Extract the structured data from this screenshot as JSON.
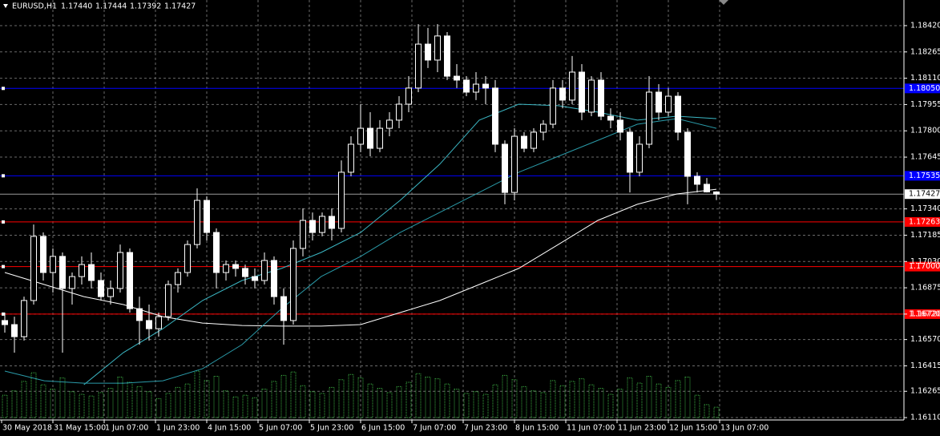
{
  "header": {
    "symbol": "EURUSD,H1"
  },
  "chart_data": {
    "type": "candlestick",
    "header_values": [
      "1.17440",
      "1.17444",
      "1.17392",
      "1.17427"
    ],
    "x_labels": [
      "30 May 2018",
      "31 May 15:00",
      "1 Jun 07:00",
      "1 Jun 23:00",
      "4 Jun 15:00",
      "5 Jun 07:00",
      "5 Jun 23:00",
      "6 Jun 15:00",
      "7 Jun 07:00",
      "7 Jun 23:00",
      "8 Jun 15:00",
      "11 Jun 07:00",
      "11 Jun 23:00",
      "12 Jun 15:00",
      "13 Jun 07:00"
    ],
    "ylim": [
      1.16096,
      1.18571
    ],
    "yticks": [
      {
        "value": 1.1842,
        "label": "1.18420"
      },
      {
        "value": 1.18265,
        "label": "1.18265"
      },
      {
        "value": 1.1811,
        "label": "1.18110"
      },
      {
        "value": 1.17955,
        "label": "1.17955"
      },
      {
        "value": 1.178,
        "label": "1.17800"
      },
      {
        "value": 1.17645,
        "label": "1.17645"
      },
      {
        "value": 1.1734,
        "label": "1.17340"
      },
      {
        "value": 1.17185,
        "label": "1.17185"
      },
      {
        "value": 1.1703,
        "label": "1.17030"
      },
      {
        "value": 1.16875,
        "label": "1.16875"
      },
      {
        "value": 1.1672,
        "label": "1.16720"
      },
      {
        "value": 1.1657,
        "label": "1.16570"
      },
      {
        "value": 1.16415,
        "label": "1.16415"
      },
      {
        "value": 1.16265,
        "label": "1.16265"
      },
      {
        "value": 1.1611,
        "label": "1.16110"
      }
    ],
    "grid": true,
    "candle_color": "#ffffff",
    "volume_color": "#3cb043",
    "candles": [
      [
        1.16682,
        1.16729,
        1.16611,
        1.16658
      ],
      [
        1.16658,
        1.16705,
        1.16493,
        1.16587
      ],
      [
        1.16587,
        1.16823,
        1.16564,
        1.168
      ],
      [
        1.168,
        1.17248,
        1.16776,
        1.17178
      ],
      [
        1.17178,
        1.17201,
        1.16918,
        1.16965
      ],
      [
        1.16965,
        1.17107,
        1.16847,
        1.1706
      ],
      [
        1.1706,
        1.17083,
        1.16493,
        1.16871
      ],
      [
        1.16871,
        1.16965,
        1.16776,
        1.16941
      ],
      [
        1.16941,
        1.1706,
        1.16894,
        1.17012
      ],
      [
        1.17012,
        1.17083,
        1.16871,
        1.16918
      ],
      [
        1.16918,
        1.16965,
        1.168,
        1.16823
      ],
      [
        1.16823,
        1.16918,
        1.16776,
        1.16871
      ],
      [
        1.16871,
        1.1713,
        1.16847,
        1.17083
      ],
      [
        1.17083,
        1.17107,
        1.16729,
        1.16752
      ],
      [
        1.16752,
        1.16823,
        1.1654,
        1.16682
      ],
      [
        1.16682,
        1.16776,
        1.16564,
        1.16634
      ],
      [
        1.16634,
        1.16729,
        1.16587,
        1.16705
      ],
      [
        1.16705,
        1.16918,
        1.16682,
        1.16894
      ],
      [
        1.16894,
        1.16989,
        1.16847,
        1.16965
      ],
      [
        1.16965,
        1.17154,
        1.16941,
        1.1713
      ],
      [
        1.1713,
        1.17461,
        1.17107,
        1.1739
      ],
      [
        1.1739,
        1.17414,
        1.17154,
        1.17201
      ],
      [
        1.17201,
        1.17225,
        1.16871,
        1.16965
      ],
      [
        1.16965,
        1.17036,
        1.16918,
        1.17012
      ],
      [
        1.17012,
        1.17036,
        1.16941,
        1.16989
      ],
      [
        1.16989,
        1.17012,
        1.16894,
        1.16941
      ],
      [
        1.16941,
        1.16989,
        1.16871,
        1.16918
      ],
      [
        1.16918,
        1.17083,
        1.16894,
        1.17036
      ],
      [
        1.17036,
        1.1706,
        1.16776,
        1.16823
      ],
      [
        1.16823,
        1.16871,
        1.1654,
        1.16682
      ],
      [
        1.16682,
        1.17154,
        1.16658,
        1.17107
      ],
      [
        1.17107,
        1.17343,
        1.1706,
        1.17272
      ],
      [
        1.17272,
        1.17319,
        1.17154,
        1.17201
      ],
      [
        1.17201,
        1.17319,
        1.17178,
        1.17296
      ],
      [
        1.17296,
        1.17343,
        1.17154,
        1.17225
      ],
      [
        1.17225,
        1.17626,
        1.17201,
        1.17556
      ],
      [
        1.17556,
        1.17768,
        1.17532,
        1.17721
      ],
      [
        1.17721,
        1.17957,
        1.17674,
        1.17815
      ],
      [
        1.17815,
        1.1791,
        1.1765,
        1.17697
      ],
      [
        1.17697,
        1.17863,
        1.17674,
        1.17815
      ],
      [
        1.17815,
        1.1791,
        1.17768,
        1.17863
      ],
      [
        1.17863,
        1.18004,
        1.17815,
        1.17957
      ],
      [
        1.17957,
        1.18122,
        1.1791,
        1.18052
      ],
      [
        1.18052,
        1.18429,
        1.18028,
        1.18311
      ],
      [
        1.18311,
        1.18406,
        1.1817,
        1.18217
      ],
      [
        1.18217,
        1.18429,
        1.18146,
        1.18359
      ],
      [
        1.18359,
        1.18382,
        1.18099,
        1.18122
      ],
      [
        1.18122,
        1.18193,
        1.18052,
        1.18099
      ],
      [
        1.18099,
        1.18122,
        1.18004,
        1.18028
      ],
      [
        1.18028,
        1.18146,
        1.17981,
        1.18075
      ],
      [
        1.18075,
        1.18122,
        1.17957,
        1.18052
      ],
      [
        1.18052,
        1.18099,
        1.17674,
        1.17721
      ],
      [
        1.17721,
        1.17744,
        1.17367,
        1.17437
      ],
      [
        1.17437,
        1.17815,
        1.1739,
        1.17768
      ],
      [
        1.17768,
        1.17792,
        1.17674,
        1.17697
      ],
      [
        1.17697,
        1.17815,
        1.17674,
        1.17792
      ],
      [
        1.17792,
        1.17863,
        1.17744,
        1.17839
      ],
      [
        1.17839,
        1.18099,
        1.17815,
        1.18052
      ],
      [
        1.18052,
        1.18099,
        1.17933,
        1.17981
      ],
      [
        1.17981,
        1.18241,
        1.17957,
        1.18146
      ],
      [
        1.18146,
        1.18193,
        1.17863,
        1.1791
      ],
      [
        1.1791,
        1.18122,
        1.17886,
        1.18099
      ],
      [
        1.18099,
        1.18146,
        1.17863,
        1.17886
      ],
      [
        1.17886,
        1.17933,
        1.17815,
        1.17863
      ],
      [
        1.17863,
        1.1791,
        1.17744,
        1.17792
      ],
      [
        1.17792,
        1.17815,
        1.17437,
        1.17556
      ],
      [
        1.17556,
        1.17768,
        1.17532,
        1.17721
      ],
      [
        1.17721,
        1.18122,
        1.17697,
        1.18028
      ],
      [
        1.18028,
        1.18075,
        1.17863,
        1.1791
      ],
      [
        1.1791,
        1.18052,
        1.17886,
        1.18004
      ],
      [
        1.18004,
        1.18028,
        1.17744,
        1.17792
      ],
      [
        1.17792,
        1.17815,
        1.17367,
        1.17532
      ],
      [
        1.17532,
        1.17556,
        1.17437,
        1.17485
      ],
      [
        1.17485,
        1.17522,
        1.17437,
        1.1744
      ],
      [
        1.1744,
        1.17444,
        1.17392,
        1.17427
      ]
    ],
    "volume": [
      2600,
      3100,
      4200,
      5200,
      3800,
      3300,
      4600,
      3000,
      2700,
      2500,
      2900,
      3400,
      4700,
      4100,
      3600,
      3000,
      2200,
      2800,
      3500,
      3900,
      5400,
      4300,
      4800,
      3100,
      2400,
      2600,
      2300,
      3300,
      4200,
      4900,
      5300,
      3700,
      3000,
      2800,
      3500,
      4400,
      5000,
      4600,
      3900,
      3400,
      2900,
      3600,
      4100,
      5100,
      4700,
      4500,
      3900,
      3300,
      2800,
      3000,
      2700,
      3800,
      4900,
      4400,
      3600,
      3100,
      2900,
      4300,
      3700,
      4200,
      4500,
      3800,
      3400,
      2700,
      3300,
      4600,
      4000,
      4800,
      3900,
      3500,
      4300,
      4700,
      2600,
      1500,
      1200
    ],
    "moving_averages": [
      {
        "color": "#ffffff",
        "values": [
          1.16965,
          1.16894,
          1.16823,
          1.16776,
          1.16705,
          1.16667,
          1.16653,
          1.16649,
          1.16649,
          1.16658,
          1.16729,
          1.168,
          1.16894,
          1.16989,
          1.1713,
          1.17272,
          1.17367,
          1.17428,
          1.17456
        ]
      },
      {
        "color": "#3bb7c4",
        "values": [
          null,
          null,
          1.16304,
          1.16493,
          1.16634,
          1.168,
          1.16918,
          1.16989,
          1.17083,
          1.17201,
          1.1739,
          1.17603,
          1.17863,
          1.17957,
          1.17948,
          1.1791,
          1.17863,
          1.17886,
          1.17872
        ]
      },
      {
        "color": "#2a9aa8",
        "values": [
          1.16384,
          1.16327,
          1.16313,
          1.16313,
          1.16327,
          1.16398,
          1.1654,
          1.16752,
          1.16941,
          1.1706,
          1.17201,
          1.17319,
          1.17437,
          1.17556,
          1.1765,
          1.17744,
          1.17839,
          1.17872,
          1.17815
        ]
      }
    ],
    "levels": [
      {
        "value": 1.1805,
        "label": "1.18050",
        "color": "#0000ff"
      },
      {
        "value": 1.17535,
        "label": "1.17535",
        "color": "#0000ff"
      },
      {
        "value": 1.17263,
        "label": "1.17263",
        "color": "#ff0000"
      },
      {
        "value": 1.17,
        "label": "1.17000",
        "color": "#ff0000"
      },
      {
        "value": 1.1672,
        "label": "1.16720",
        "color": "#ff0000"
      }
    ]
  }
}
